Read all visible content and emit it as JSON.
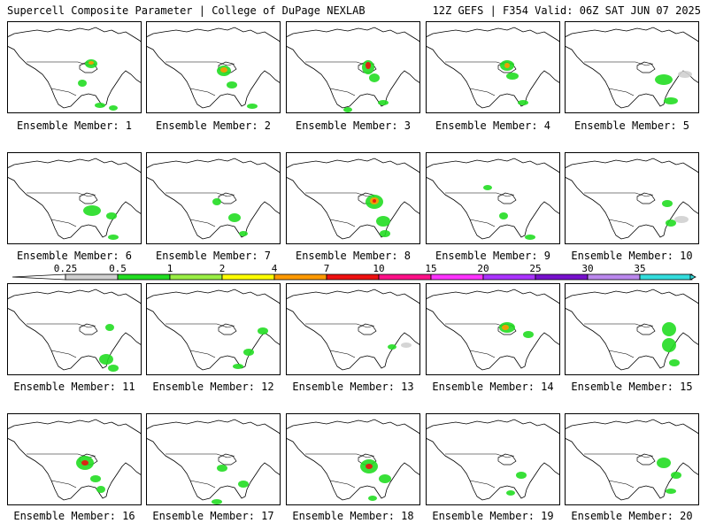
{
  "header": {
    "left_title": "Supercell Composite Parameter | College of DuPage NEXLAB",
    "right_title": "12Z GEFS | F354 Valid: 06Z SAT JUN 07 2025"
  },
  "panels": [
    {
      "label": "Ensemble Member: 1"
    },
    {
      "label": "Ensemble Member: 2"
    },
    {
      "label": "Ensemble Member: 3"
    },
    {
      "label": "Ensemble Member: 4"
    },
    {
      "label": "Ensemble Member: 5"
    },
    {
      "label": "Ensemble Member: 6"
    },
    {
      "label": "Ensemble Member: 7"
    },
    {
      "label": "Ensemble Member: 8"
    },
    {
      "label": "Ensemble Member: 9"
    },
    {
      "label": "Ensemble Member: 10"
    },
    {
      "label": "Ensemble Member: 11"
    },
    {
      "label": "Ensemble Member: 12"
    },
    {
      "label": "Ensemble Member: 13"
    },
    {
      "label": "Ensemble Member: 14"
    },
    {
      "label": "Ensemble Member: 15"
    },
    {
      "label": "Ensemble Member: 16"
    },
    {
      "label": "Ensemble Member: 17"
    },
    {
      "label": "Ensemble Member: 18"
    },
    {
      "label": "Ensemble Member: 19"
    },
    {
      "label": "Ensemble Member: 20"
    }
  ],
  "colorbar": {
    "ticks": [
      "0.25",
      "0.5",
      "1",
      "2",
      "4",
      "7",
      "10",
      "15",
      "20",
      "25",
      "30",
      "35"
    ],
    "colors": [
      "#d0d0d0",
      "#22dd22",
      "#99ee44",
      "#ffff00",
      "#ff9900",
      "#ee1111",
      "#ff1188",
      "#ff33ff",
      "#aa33ff",
      "#7711cc",
      "#bb88ee",
      "#33dddd"
    ],
    "low_arrow_color": "#ffffff",
    "high_arrow_color": "#33dddd"
  }
}
